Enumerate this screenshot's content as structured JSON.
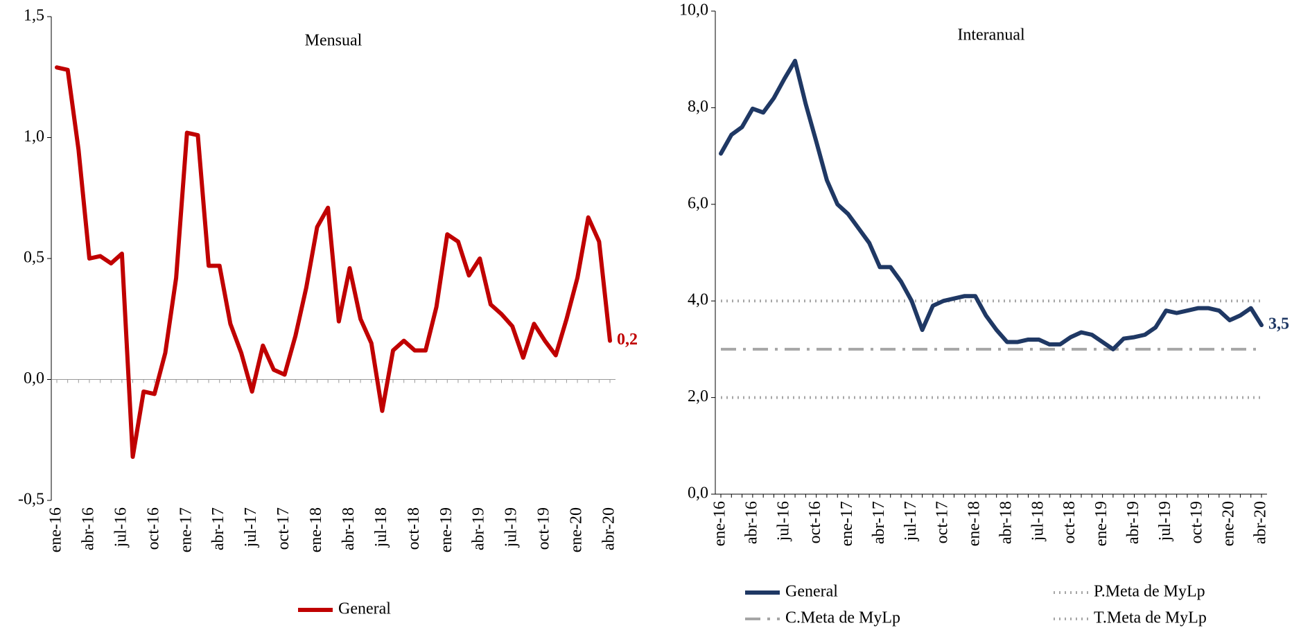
{
  "chart_data": [
    {
      "type": "line",
      "title": "Mensual",
      "categories": [
        "ene-16",
        null,
        null,
        "abr-16",
        null,
        null,
        "jul-16",
        null,
        null,
        "oct-16",
        null,
        null,
        "ene-17",
        null,
        null,
        "abr-17",
        null,
        null,
        "jul-17",
        null,
        null,
        "oct-17",
        null,
        null,
        "ene-18",
        null,
        null,
        "abr-18",
        null,
        null,
        "jul-18",
        null,
        null,
        "oct-18",
        null,
        null,
        "ene-19",
        null,
        null,
        "abr-19",
        null,
        null,
        "jul-19",
        null,
        null,
        "oct-19",
        null,
        null,
        "ene-20",
        null,
        null,
        "abr-20"
      ],
      "series": [
        {
          "name": "General",
          "color": "#c00000",
          "style": "solid",
          "values": [
            1.29,
            1.28,
            0.95,
            0.5,
            0.51,
            0.48,
            0.52,
            -0.32,
            -0.05,
            -0.06,
            0.11,
            0.42,
            1.02,
            1.01,
            0.47,
            0.47,
            0.23,
            0.11,
            -0.05,
            0.14,
            0.04,
            0.02,
            0.18,
            0.38,
            0.63,
            0.71,
            0.24,
            0.46,
            0.25,
            0.15,
            -0.13,
            0.12,
            0.16,
            0.12,
            0.12,
            0.3,
            0.6,
            0.57,
            0.43,
            0.5,
            0.31,
            0.27,
            0.22,
            0.09,
            0.23,
            0.16,
            0.1,
            0.25,
            0.42,
            0.67,
            0.57,
            0.16
          ],
          "value_labels": [
            null,
            null,
            null,
            null,
            null,
            null,
            null,
            null,
            null,
            null,
            null,
            null,
            null,
            null,
            null,
            null,
            null,
            null,
            null,
            null,
            null,
            null,
            null,
            null,
            null,
            null,
            null,
            null,
            null,
            null,
            null,
            null,
            null,
            null,
            null,
            null,
            null,
            null,
            null,
            null,
            null,
            null,
            null,
            null,
            null,
            null,
            null,
            null,
            null,
            null,
            null,
            "0,2"
          ]
        }
      ],
      "ylim": [
        -0.5,
        1.5
      ],
      "yticks": [
        {
          "value": -0.5,
          "label": "-0,5"
        },
        {
          "value": 0,
          "label": "0,0"
        },
        {
          "value": 0.5,
          "label": "0,5"
        },
        {
          "value": 1,
          "label": "1,0"
        },
        {
          "value": 1.5,
          "label": "1,5"
        }
      ],
      "zero_line": true
    },
    {
      "type": "line",
      "title": "Interanual",
      "categories": [
        "ene-16",
        null,
        null,
        "abr-16",
        null,
        null,
        "jul-16",
        null,
        null,
        "oct-16",
        null,
        null,
        "ene-17",
        null,
        null,
        "abr-17",
        null,
        null,
        "jul-17",
        null,
        null,
        "oct-17",
        null,
        null,
        "ene-18",
        null,
        null,
        "abr-18",
        null,
        null,
        "jul-18",
        null,
        null,
        "oct-18",
        null,
        null,
        "ene-19",
        null,
        null,
        "abr-19",
        null,
        null,
        "jul-19",
        null,
        null,
        "oct-19",
        null,
        null,
        "ene-20",
        null,
        null,
        "abr-20"
      ],
      "series": [
        {
          "name": "General",
          "color": "#1f3864",
          "style": "solid",
          "values": [
            7.05,
            7.44,
            7.6,
            7.98,
            7.9,
            8.2,
            8.6,
            8.97,
            8.08,
            7.3,
            6.5,
            6.0,
            5.8,
            5.5,
            5.2,
            4.7,
            4.7,
            4.4,
            4.0,
            3.4,
            3.9,
            4.0,
            4.05,
            4.1,
            4.1,
            3.7,
            3.4,
            3.15,
            3.15,
            3.2,
            3.2,
            3.1,
            3.1,
            3.25,
            3.35,
            3.3,
            3.15,
            3.0,
            3.22,
            3.25,
            3.3,
            3.45,
            3.8,
            3.75,
            3.8,
            3.85,
            3.85,
            3.8,
            3.6,
            3.7,
            3.85,
            3.5
          ],
          "value_labels": [
            null,
            null,
            null,
            null,
            null,
            null,
            null,
            null,
            null,
            null,
            null,
            null,
            null,
            null,
            null,
            null,
            null,
            null,
            null,
            null,
            null,
            null,
            null,
            null,
            null,
            null,
            null,
            null,
            null,
            null,
            null,
            null,
            null,
            null,
            null,
            null,
            null,
            null,
            null,
            null,
            null,
            null,
            null,
            null,
            null,
            null,
            null,
            null,
            null,
            null,
            null,
            "3,5"
          ]
        },
        {
          "name": "C.Meta de MyLp",
          "color": "#a6a6a6",
          "style": "dashdot",
          "values": [
            3,
            3,
            3,
            3,
            3,
            3,
            3,
            3,
            3,
            3,
            3,
            3,
            3,
            3,
            3,
            3,
            3,
            3,
            3,
            3,
            3,
            3,
            3,
            3,
            3,
            3,
            3,
            3,
            3,
            3,
            3,
            3,
            3,
            3,
            3,
            3,
            3,
            3,
            3,
            3,
            3,
            3,
            3,
            3,
            3,
            3,
            3,
            3,
            3,
            3,
            3,
            3
          ]
        },
        {
          "name": "P.Meta de MyLp",
          "color": "#a6a6a6",
          "style": "dotted",
          "values": [
            4,
            4,
            4,
            4,
            4,
            4,
            4,
            4,
            4,
            4,
            4,
            4,
            4,
            4,
            4,
            4,
            4,
            4,
            4,
            4,
            4,
            4,
            4,
            4,
            4,
            4,
            4,
            4,
            4,
            4,
            4,
            4,
            4,
            4,
            4,
            4,
            4,
            4,
            4,
            4,
            4,
            4,
            4,
            4,
            4,
            4,
            4,
            4,
            4,
            4,
            4,
            4
          ]
        },
        {
          "name": "T.Meta de MyLp",
          "color": "#a6a6a6",
          "style": "dotted",
          "values": [
            2,
            2,
            2,
            2,
            2,
            2,
            2,
            2,
            2,
            2,
            2,
            2,
            2,
            2,
            2,
            2,
            2,
            2,
            2,
            2,
            2,
            2,
            2,
            2,
            2,
            2,
            2,
            2,
            2,
            2,
            2,
            2,
            2,
            2,
            2,
            2,
            2,
            2,
            2,
            2,
            2,
            2,
            2,
            2,
            2,
            2,
            2,
            2,
            2,
            2,
            2,
            2
          ]
        }
      ],
      "ylim": [
        0,
        10
      ],
      "yticks": [
        {
          "value": 0,
          "label": "0,0"
        },
        {
          "value": 2,
          "label": "2,0"
        },
        {
          "value": 4,
          "label": "4,0"
        },
        {
          "value": 6,
          "label": "6,0"
        },
        {
          "value": 8,
          "label": "8,0"
        },
        {
          "value": 10,
          "label": "10,0"
        }
      ],
      "zero_line": false
    }
  ]
}
